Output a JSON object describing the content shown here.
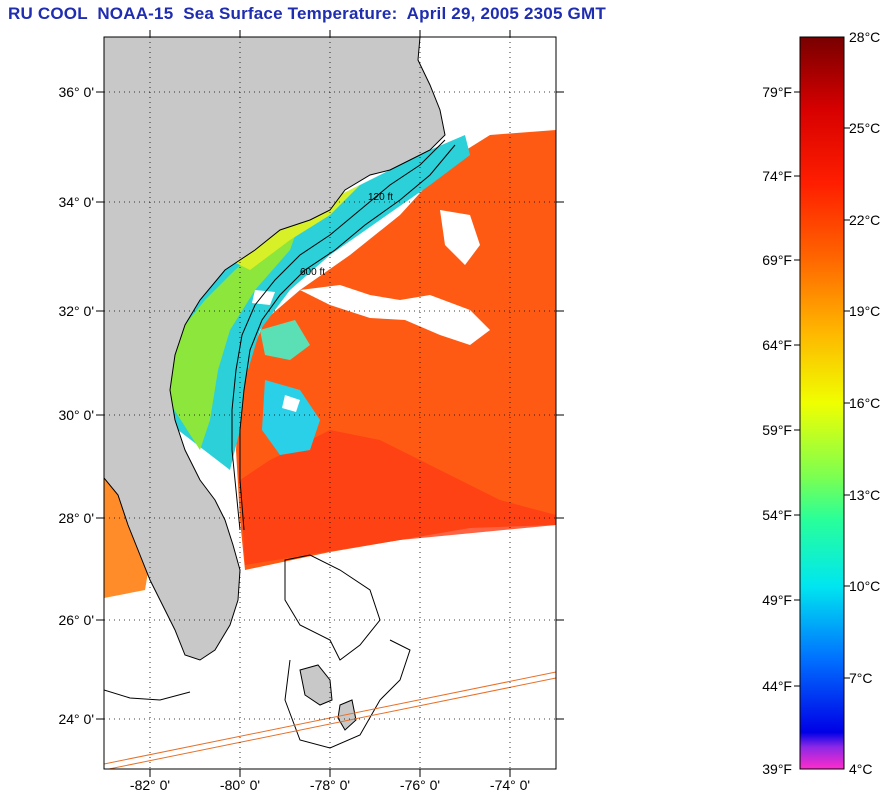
{
  "title": "RU COOL  NOAA-15  Sea Surface Temperature:  April 29, 2005 2305 GMT",
  "map": {
    "lat_ticks": [
      "36° 0'",
      "34° 0'",
      "32° 0'",
      "30° 0'",
      "28° 0'",
      "26° 0'",
      "24° 0'"
    ],
    "lon_ticks": [
      "-82° 0'",
      "-80° 0'",
      "-78° 0'",
      "-76° 0'",
      "-74° 0'"
    ],
    "lat_range": [
      23,
      37
    ],
    "lon_range": [
      -83,
      -73
    ],
    "isobath_labels": [
      "120 ft",
      "600 ft"
    ]
  },
  "colorbar": {
    "celsius_labels": [
      "28°C",
      "25°C",
      "22°C",
      "19°C",
      "16°C",
      "13°C",
      "10°C",
      "7°C",
      "4°C"
    ],
    "fahrenheit_labels": [
      "79°F",
      "74°F",
      "69°F",
      "64°F",
      "59°F",
      "54°F",
      "49°F",
      "44°F",
      "39°F"
    ],
    "range_c": [
      4,
      28
    ]
  },
  "colors": {
    "title": "#1f2db0",
    "land": "#c8c8c8",
    "warm": "#ff4a14",
    "cool": "#28c8e6"
  }
}
